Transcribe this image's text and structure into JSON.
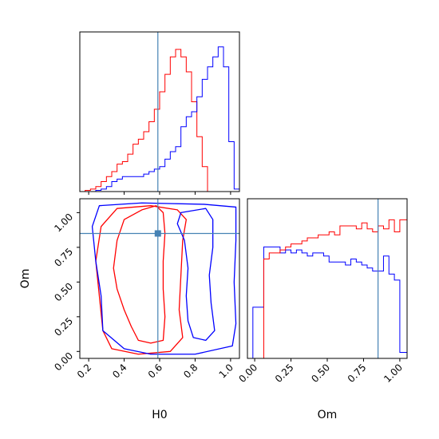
{
  "chart_data": [
    {
      "type": "histogram",
      "panel": "H0-marginal",
      "xlim": [
        0.15,
        1.05
      ],
      "truth": 0.59,
      "bin_edges": [
        0.15,
        0.18,
        0.21,
        0.24,
        0.27,
        0.3,
        0.33,
        0.36,
        0.39,
        0.42,
        0.45,
        0.48,
        0.51,
        0.54,
        0.57,
        0.6,
        0.63,
        0.66,
        0.69,
        0.72,
        0.75,
        0.78,
        0.81,
        0.84,
        0.87,
        0.9,
        0.93,
        0.96,
        0.99,
        1.02,
        1.05
      ],
      "series": [
        {
          "color": "#ff0000",
          "values": [
            0,
            0.5,
            1,
            2,
            4,
            6,
            8,
            11,
            12,
            15,
            19,
            21,
            24,
            28,
            33,
            40,
            47,
            54,
            57,
            54,
            48,
            36,
            22,
            10,
            0,
            0,
            0,
            0,
            0,
            0
          ]
        },
        {
          "color": "#0000ff",
          "values": [
            0,
            0,
            0,
            0.5,
            1,
            2,
            4,
            5,
            6,
            6,
            6,
            6,
            7,
            8,
            9,
            10,
            13,
            16,
            18,
            26,
            30,
            32,
            38,
            45,
            50,
            54,
            58,
            50,
            20,
            1
          ]
        }
      ],
      "ymax": 64
    },
    {
      "type": "contour",
      "panel": "H0-Om-joint",
      "xlabel": "H0",
      "ylabel": "Om",
      "xlim": [
        0.15,
        1.05
      ],
      "ylim": [
        -0.05,
        1.1
      ],
      "xticks": [
        "0.2",
        "0.4",
        "0.6",
        "0.8",
        "1.0"
      ],
      "yticks": [
        "0.00",
        "0.25",
        "0.50",
        "0.75",
        "1.00"
      ],
      "truth": {
        "H0": 0.59,
        "Om": 0.85
      },
      "series": [
        {
          "color": "#ff0000",
          "level": "inner",
          "points": [
            [
              0.5,
              1.02
            ],
            [
              0.58,
              1.05
            ],
            [
              0.62,
              1.0
            ],
            [
              0.63,
              0.85
            ],
            [
              0.62,
              0.65
            ],
            [
              0.62,
              0.45
            ],
            [
              0.63,
              0.25
            ],
            [
              0.62,
              0.08
            ],
            [
              0.55,
              0.06
            ],
            [
              0.48,
              0.08
            ],
            [
              0.44,
              0.18
            ],
            [
              0.4,
              0.3
            ],
            [
              0.36,
              0.45
            ],
            [
              0.34,
              0.6
            ],
            [
              0.36,
              0.8
            ],
            [
              0.4,
              0.95
            ]
          ]
        },
        {
          "color": "#ff0000",
          "level": "outer",
          "points": [
            [
              0.36,
              1.03
            ],
            [
              0.55,
              1.05
            ],
            [
              0.7,
              1.02
            ],
            [
              0.75,
              0.95
            ],
            [
              0.73,
              0.8
            ],
            [
              0.72,
              0.55
            ],
            [
              0.71,
              0.3
            ],
            [
              0.73,
              0.1
            ],
            [
              0.66,
              0.0
            ],
            [
              0.48,
              -0.02
            ],
            [
              0.33,
              0.02
            ],
            [
              0.28,
              0.15
            ],
            [
              0.26,
              0.4
            ],
            [
              0.24,
              0.65
            ],
            [
              0.27,
              0.9
            ]
          ]
        },
        {
          "color": "#0000ff",
          "level": "inner",
          "points": [
            [
              0.72,
              1.0
            ],
            [
              0.86,
              1.03
            ],
            [
              0.9,
              0.95
            ],
            [
              0.9,
              0.75
            ],
            [
              0.88,
              0.55
            ],
            [
              0.89,
              0.35
            ],
            [
              0.91,
              0.15
            ],
            [
              0.86,
              0.08
            ],
            [
              0.79,
              0.1
            ],
            [
              0.76,
              0.22
            ],
            [
              0.75,
              0.4
            ],
            [
              0.76,
              0.6
            ],
            [
              0.74,
              0.8
            ],
            [
              0.7,
              0.92
            ]
          ]
        },
        {
          "color": "#0000ff",
          "level": "outer",
          "points": [
            [
              0.26,
              1.05
            ],
            [
              0.5,
              1.07
            ],
            [
              0.85,
              1.06
            ],
            [
              1.03,
              1.04
            ],
            [
              1.03,
              0.8
            ],
            [
              1.02,
              0.5
            ],
            [
              1.03,
              0.2
            ],
            [
              1.01,
              0.04
            ],
            [
              0.8,
              -0.02
            ],
            [
              0.55,
              -0.02
            ],
            [
              0.4,
              0.02
            ],
            [
              0.28,
              0.15
            ],
            [
              0.27,
              0.4
            ],
            [
              0.24,
              0.65
            ],
            [
              0.22,
              0.9
            ]
          ]
        }
      ]
    },
    {
      "type": "histogram",
      "panel": "Om-marginal",
      "xlabel": "Om",
      "xlim": [
        -0.05,
        1.05
      ],
      "xticks": [
        "0.00",
        "0.25",
        "0.50",
        "0.75",
        "1.00"
      ],
      "truth": 0.85,
      "bin_edges": [
        -0.05,
        -0.0125,
        0.025,
        0.0625,
        0.1,
        0.1375,
        0.175,
        0.2125,
        0.25,
        0.2875,
        0.325,
        0.3625,
        0.4,
        0.4375,
        0.475,
        0.5125,
        0.55,
        0.5875,
        0.625,
        0.6625,
        0.7,
        0.7375,
        0.775,
        0.8125,
        0.85,
        0.8875,
        0.925,
        0.9625,
        1.0,
        1.05
      ],
      "series": [
        {
          "color": "#ff0000",
          "values": [
            0,
            0,
            0,
            33,
            35,
            35,
            36,
            37,
            38,
            38,
            39,
            40,
            40,
            41,
            41,
            42,
            41,
            44,
            44,
            44,
            43,
            45,
            43,
            42,
            44,
            43,
            46,
            42,
            46
          ]
        },
        {
          "color": "#0000ff",
          "values": [
            0,
            17,
            17,
            37,
            37,
            37,
            35,
            36,
            35,
            36,
            35,
            34,
            35,
            35,
            34,
            32,
            32,
            32,
            31,
            33,
            32,
            31,
            30,
            29,
            29,
            34,
            28,
            26,
            2
          ]
        }
      ],
      "ymax": 53
    }
  ]
}
